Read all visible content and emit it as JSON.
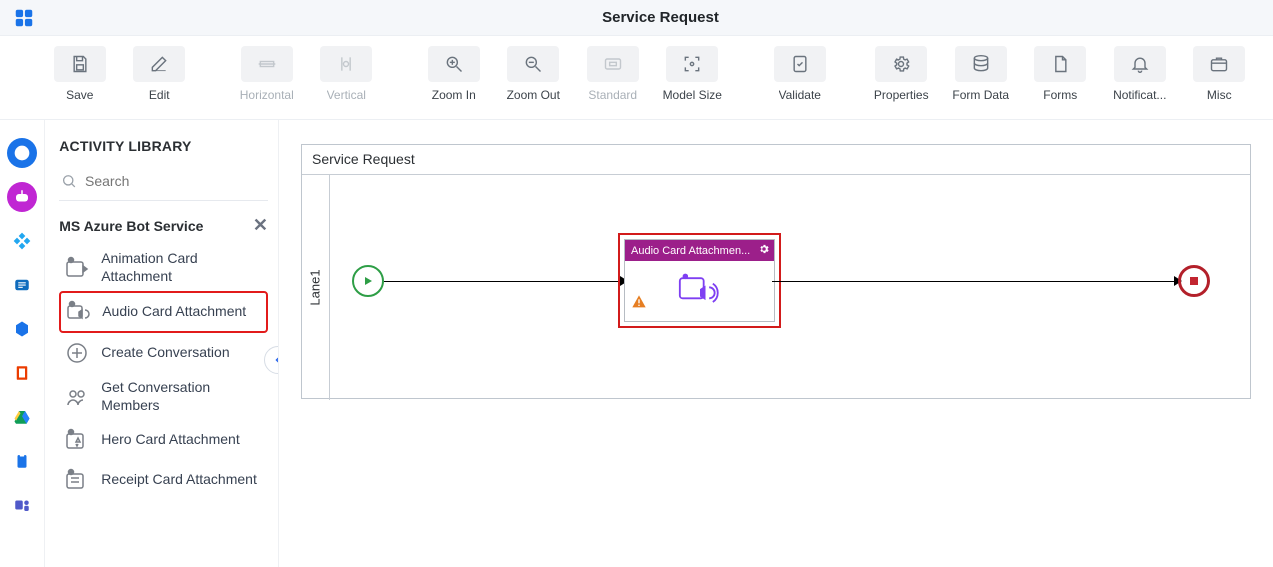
{
  "topbar": {
    "title": "Service Request"
  },
  "toolbar": [
    {
      "id": "save",
      "label": "Save",
      "enabled": true
    },
    {
      "id": "edit",
      "label": "Edit",
      "enabled": true
    },
    {
      "id": "horizontal",
      "label": "Horizontal",
      "enabled": false
    },
    {
      "id": "vertical",
      "label": "Vertical",
      "enabled": false
    },
    {
      "id": "zoom-in",
      "label": "Zoom In",
      "enabled": true
    },
    {
      "id": "zoom-out",
      "label": "Zoom Out",
      "enabled": true
    },
    {
      "id": "standard",
      "label": "Standard",
      "enabled": false
    },
    {
      "id": "model-size",
      "label": "Model Size",
      "enabled": true
    },
    {
      "id": "validate",
      "label": "Validate",
      "enabled": true
    },
    {
      "id": "properties",
      "label": "Properties",
      "enabled": true
    },
    {
      "id": "form-data",
      "label": "Form Data",
      "enabled": true
    },
    {
      "id": "forms",
      "label": "Forms",
      "enabled": true
    },
    {
      "id": "notifications",
      "label": "Notificat...",
      "enabled": true
    },
    {
      "id": "misc",
      "label": "Misc",
      "enabled": true
    }
  ],
  "panel": {
    "heading": "ACTIVITY LIBRARY",
    "search_placeholder": "Search",
    "group": "MS Azure Bot Service",
    "items": [
      {
        "label": "Animation Card Attachment",
        "selected": false
      },
      {
        "label": "Audio Card Attachment",
        "selected": true
      },
      {
        "label": "Create Conversation",
        "selected": false
      },
      {
        "label": "Get Conversation Members",
        "selected": false
      },
      {
        "label": "Hero Card Attachment",
        "selected": false
      },
      {
        "label": "Receipt Card Attachment",
        "selected": false
      }
    ]
  },
  "canvas": {
    "pool_title": "Service Request",
    "lane_title": "Lane1",
    "activity_title": "Audio Card Attachmen...",
    "colors": {
      "activity_header": "#9c1f8a",
      "start_border": "#2e9e46",
      "end_border": "#b3202a",
      "selection": "#d21b1b"
    }
  },
  "rail": [
    {
      "name": "add",
      "bg": "#1a73e8",
      "fg": "#ffffff"
    },
    {
      "name": "bot",
      "bg": "#c026d3",
      "fg": "#ffffff"
    },
    {
      "name": "api",
      "bg": "#ffffff",
      "fg": "#22a7f0"
    },
    {
      "name": "exchange",
      "bg": "#ffffff",
      "fg": "#0f6cbd"
    },
    {
      "name": "hexagon",
      "bg": "#ffffff",
      "fg": "#1a73e8"
    },
    {
      "name": "office",
      "bg": "#ffffff",
      "fg": "#eb3c00"
    },
    {
      "name": "drive",
      "bg": "#ffffff",
      "fg": "#0f9d58"
    },
    {
      "name": "clipboard",
      "bg": "#ffffff",
      "fg": "#1a73e8"
    },
    {
      "name": "teams",
      "bg": "#ffffff",
      "fg": "#5059c9"
    }
  ]
}
